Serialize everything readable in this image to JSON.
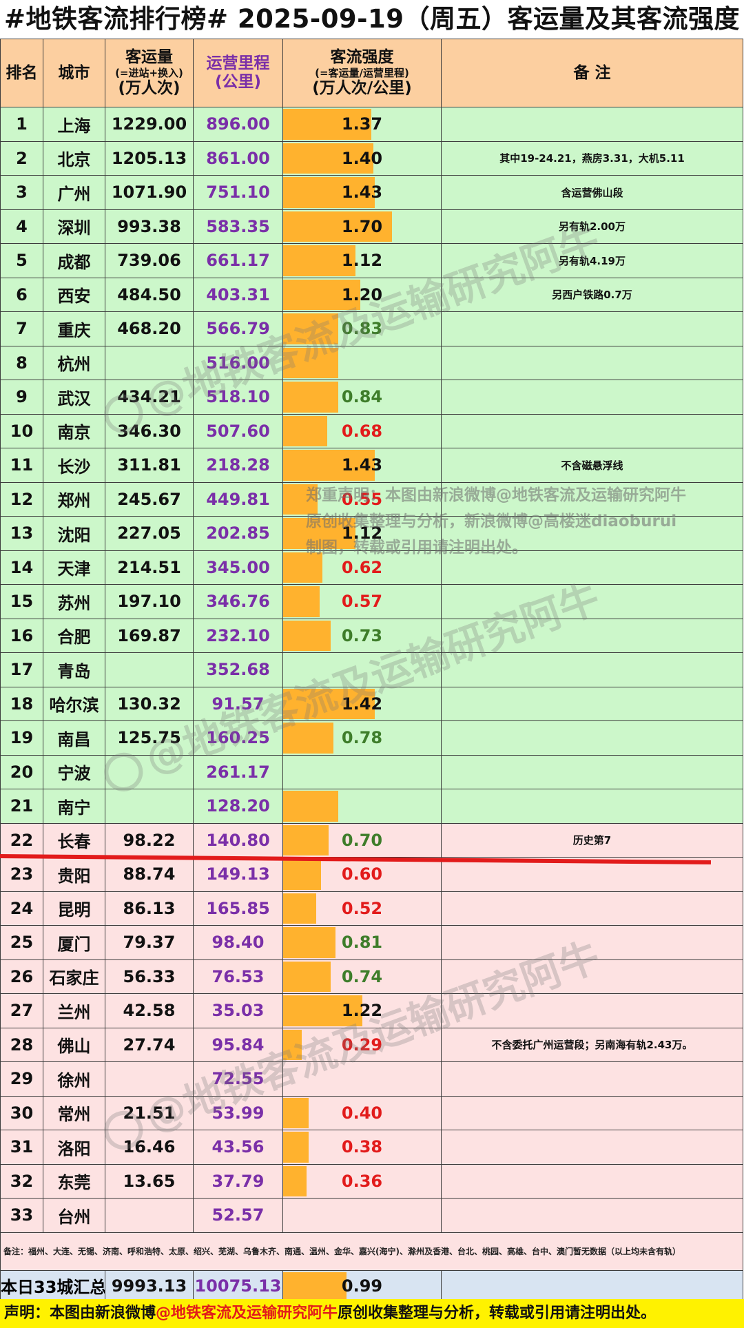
{
  "title": "#地铁客流排行榜# 2025-09-19（周五）客运量及其客流强度",
  "header": {
    "rank": "排名",
    "city": "城市",
    "volume": "客运量",
    "volume_sub": "(=进站+换入)",
    "volume_unit": "(万人次)",
    "length": "运营里程",
    "length_unit": "(公里)",
    "intensity": "客流强度",
    "intensity_sub": "(=客运量/运营里程)",
    "intensity_unit": "(万人次/公里)",
    "note": "备 注"
  },
  "chart_data": {
    "type": "table",
    "columns": [
      "排名",
      "城市",
      "客运量(万人次)",
      "运营里程(公里)",
      "客流强度(万人次/公里)",
      "备注"
    ],
    "rows": [
      {
        "rank": "1",
        "city": "上海",
        "volume": "1229.00",
        "length": "896.00",
        "intensity": "1.37",
        "note": ""
      },
      {
        "rank": "2",
        "city": "北京",
        "volume": "1205.13",
        "length": "861.00",
        "intensity": "1.40",
        "note": "其中19-24.21，燕房3.31，大机5.11"
      },
      {
        "rank": "3",
        "city": "广州",
        "volume": "1071.90",
        "length": "751.10",
        "intensity": "1.43",
        "note": "含运营佛山段"
      },
      {
        "rank": "4",
        "city": "深圳",
        "volume": "993.38",
        "length": "583.35",
        "intensity": "1.70",
        "note": "另有轨2.00万"
      },
      {
        "rank": "5",
        "city": "成都",
        "volume": "739.06",
        "length": "661.17",
        "intensity": "1.12",
        "note": "另有轨4.19万"
      },
      {
        "rank": "6",
        "city": "西安",
        "volume": "484.50",
        "length": "403.31",
        "intensity": "1.20",
        "note": "另西户铁路0.7万"
      },
      {
        "rank": "7",
        "city": "重庆",
        "volume": "468.20",
        "length": "566.79",
        "intensity": "0.83",
        "note": ""
      },
      {
        "rank": "8",
        "city": "杭州",
        "volume": "",
        "length": "516.00",
        "intensity": "",
        "note": ""
      },
      {
        "rank": "9",
        "city": "武汉",
        "volume": "434.21",
        "length": "518.10",
        "intensity": "0.84",
        "note": ""
      },
      {
        "rank": "10",
        "city": "南京",
        "volume": "346.30",
        "length": "507.60",
        "intensity": "0.68",
        "note": ""
      },
      {
        "rank": "11",
        "city": "长沙",
        "volume": "311.81",
        "length": "218.28",
        "intensity": "1.43",
        "note": "不含磁悬浮线"
      },
      {
        "rank": "12",
        "city": "郑州",
        "volume": "245.67",
        "length": "449.81",
        "intensity": "0.55",
        "note": ""
      },
      {
        "rank": "13",
        "city": "沈阳",
        "volume": "227.05",
        "length": "202.85",
        "intensity": "1.12",
        "note": ""
      },
      {
        "rank": "14",
        "city": "天津",
        "volume": "214.51",
        "length": "345.00",
        "intensity": "0.62",
        "note": ""
      },
      {
        "rank": "15",
        "city": "苏州",
        "volume": "197.10",
        "length": "346.76",
        "intensity": "0.57",
        "note": ""
      },
      {
        "rank": "16",
        "city": "合肥",
        "volume": "169.87",
        "length": "232.10",
        "intensity": "0.73",
        "note": ""
      },
      {
        "rank": "17",
        "city": "青岛",
        "volume": "",
        "length": "352.68",
        "intensity": "",
        "note": ""
      },
      {
        "rank": "18",
        "city": "哈尔滨",
        "volume": "130.32",
        "length": "91.57",
        "intensity": "1.42",
        "note": ""
      },
      {
        "rank": "19",
        "city": "南昌",
        "volume": "125.75",
        "length": "160.25",
        "intensity": "0.78",
        "note": ""
      },
      {
        "rank": "20",
        "city": "宁波",
        "volume": "",
        "length": "261.17",
        "intensity": "",
        "note": ""
      },
      {
        "rank": "21",
        "city": "南宁",
        "volume": "",
        "length": "128.20",
        "intensity": "",
        "note": ""
      },
      {
        "rank": "22",
        "city": "长春",
        "volume": "98.22",
        "length": "140.80",
        "intensity": "0.70",
        "note": "历史第7"
      },
      {
        "rank": "23",
        "city": "贵阳",
        "volume": "88.74",
        "length": "149.13",
        "intensity": "0.60",
        "note": ""
      },
      {
        "rank": "24",
        "city": "昆明",
        "volume": "86.13",
        "length": "165.85",
        "intensity": "0.52",
        "note": ""
      },
      {
        "rank": "25",
        "city": "厦门",
        "volume": "79.37",
        "length": "98.40",
        "intensity": "0.81",
        "note": ""
      },
      {
        "rank": "26",
        "city": "石家庄",
        "volume": "56.33",
        "length": "76.53",
        "intensity": "0.74",
        "note": ""
      },
      {
        "rank": "27",
        "city": "兰州",
        "volume": "42.58",
        "length": "35.03",
        "intensity": "1.22",
        "note": ""
      },
      {
        "rank": "28",
        "city": "佛山",
        "volume": "27.74",
        "length": "95.84",
        "intensity": "0.29",
        "note": "不含委托广州运营段；另南海有轨2.43万。"
      },
      {
        "rank": "29",
        "city": "徐州",
        "volume": "",
        "length": "72.55",
        "intensity": "",
        "note": ""
      },
      {
        "rank": "30",
        "city": "常州",
        "volume": "21.51",
        "length": "53.99",
        "intensity": "0.40",
        "note": ""
      },
      {
        "rank": "31",
        "city": "洛阳",
        "volume": "16.46",
        "length": "43.56",
        "intensity": "0.38",
        "note": ""
      },
      {
        "rank": "32",
        "city": "东莞",
        "volume": "13.65",
        "length": "37.79",
        "intensity": "0.36",
        "note": ""
      },
      {
        "rank": "33",
        "city": "台州",
        "volume": "",
        "length": "52.57",
        "intensity": "",
        "note": ""
      }
    ],
    "bar_fraction": [
      0.56,
      0.57,
      0.58,
      0.69,
      0.46,
      0.49,
      0.35,
      0.35,
      0.35,
      0.28,
      0.58,
      0.22,
      0.46,
      0.25,
      0.23,
      0.3,
      0,
      0.58,
      0.32,
      0,
      0.35,
      0.29,
      0.24,
      0.21,
      0.33,
      0.3,
      0.5,
      0.12,
      0,
      0.16,
      0.16,
      0.15,
      0
    ],
    "total": {
      "label": "本日33城汇总",
      "volume": "9993.13",
      "length": "10075.13",
      "intensity": "0.99",
      "bar_fraction": 0.4
    }
  },
  "highlight_row": 22,
  "colors": {
    "top_band": "#ccf7ca",
    "bottom_band": "#fde2e2",
    "bar": "#ffb22e",
    "header": "#fccfa0",
    "high": "#111111",
    "mid": "#3e7d2a",
    "low": "#e21b1b"
  },
  "bottom_note": "备注：福州、大连、无锡、济南、呼和浩特、太原、绍兴、芜湖、乌鲁木齐、南通、温州、金华、嘉兴(海宁)、滁州及香港、台北、桃园、高雄、台中、澳门暂无数据（以上均未含有轨）",
  "statement": "郑重声明：本图由新浪微博@地铁客流及运输研究阿牛原创收集整理与分析，新浪微博@高楼迷diaoburui制图，转载或引用请注明出处。",
  "watermark": "@地铁客流及运输研究阿牛",
  "footer": {
    "prefix": "声明：本图由新浪微博",
    "handle": "@地铁客流及运输研究阿牛",
    "suffix": "原创收集整理与分析，转载或引用请注明出处。"
  }
}
